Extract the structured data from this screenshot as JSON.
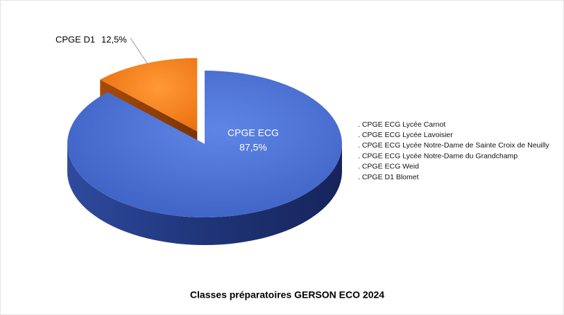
{
  "chart_data": {
    "type": "pie",
    "title": "Classes préparatoires GERSON  ECO 2024",
    "categories": [
      "CPGE ECG",
      "CPGE D1"
    ],
    "values": [
      87.5,
      12.5
    ],
    "value_labels": [
      "87,5%",
      "12,5%"
    ],
    "colors": [
      "#4a70d2",
      "#f57c12"
    ],
    "annotations": [
      ". CPGE ECG Lycée Carnot",
      ". CPGE ECG Lycée Lavoisier",
      ". CPGE ECG Lycée Notre-Dame de Sainte Croix de Neuilly",
      ". CPGE ECG Lycée Notre-Dame du Grandchamp",
      ". CPGE ECG Weid",
      ". CPGE D1 Blomet"
    ]
  }
}
